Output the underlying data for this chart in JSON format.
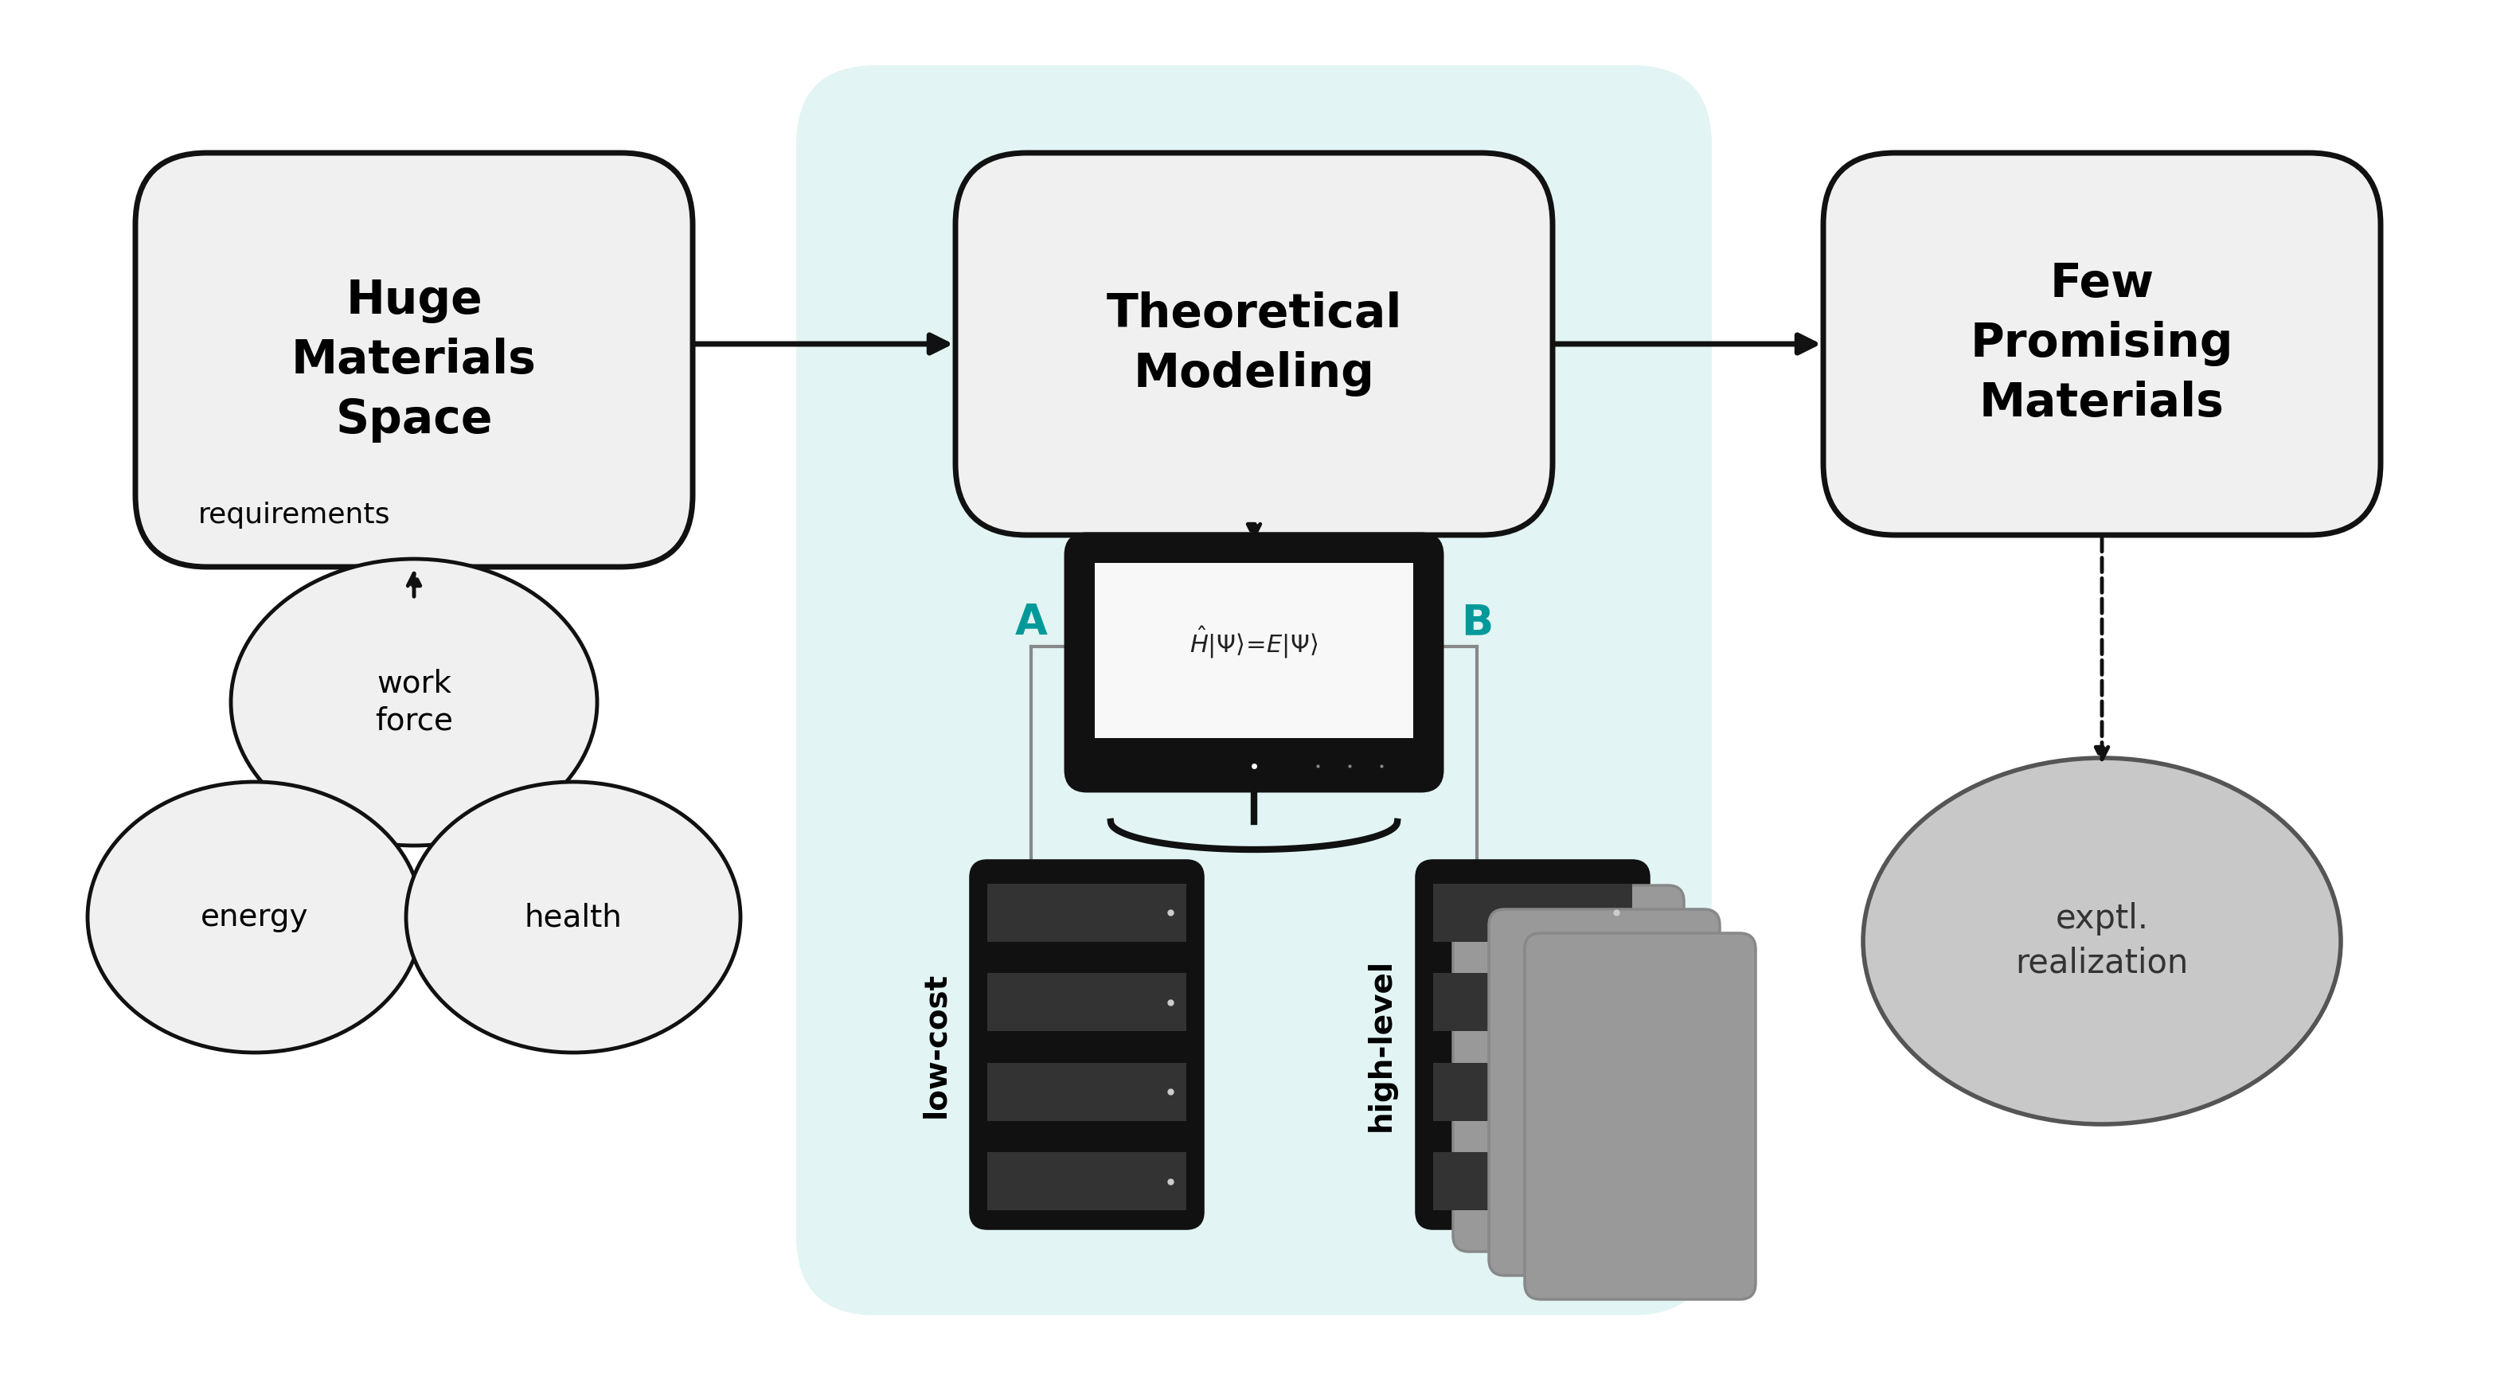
{
  "bg_color": "#ffffff",
  "teal_color": "#e2f4f4",
  "box1_text": "Huge\nMaterials\nSpace",
  "box2_text": "Theoretical\nModeling",
  "box3_text": "Few\nPromising\nMaterials",
  "circle1_text": "work\nforce",
  "circle2_text": "energy",
  "circle3_text": "health",
  "requirements_text": "requirements",
  "exptl_text": "exptl.\nrealization",
  "label_A": "A",
  "label_B": "B",
  "label_lowcost": "low-cost",
  "label_highlevel": "high-level",
  "equation_text": "$\\hat{H}|\\Psi\\rangle\\!=\\!E|\\Psi\\rangle$",
  "arrow_color": "#111111",
  "teal_label_color": "#009999",
  "gray_line_color": "#888888"
}
